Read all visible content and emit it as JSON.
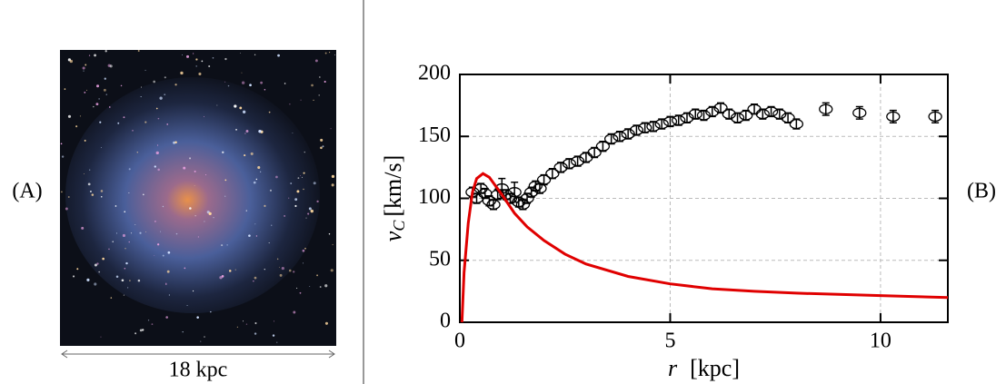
{
  "panels": {
    "left_label": "(A)",
    "right_label": "(B)",
    "scale_label": "18 kpc"
  },
  "chart_data": {
    "type": "scatter",
    "x_label": {
      "symbol": "r",
      "unit": "[kpc]"
    },
    "y_label": {
      "symbol": "v",
      "subscript": "C",
      "unit": "[km/s]"
    },
    "xlim": [
      0,
      11.6
    ],
    "xticks": [
      0,
      5,
      10
    ],
    "ylim": [
      0,
      200
    ],
    "yticks": [
      0,
      50,
      100,
      150,
      200
    ],
    "grid": true,
    "series": [
      {
        "mode": "markers",
        "color": "#000000",
        "x": [
          0.3,
          0.4,
          0.5,
          0.6,
          0.7,
          0.8,
          0.9,
          1.0,
          1.1,
          1.2,
          1.3,
          1.4,
          1.5,
          1.6,
          1.7,
          1.8,
          1.9,
          2.0,
          2.2,
          2.4,
          2.6,
          2.8,
          3.0,
          3.2,
          3.4,
          3.6,
          3.8,
          4.0,
          4.2,
          4.4,
          4.6,
          4.8,
          5.0,
          5.2,
          5.4,
          5.6,
          5.8,
          6.0,
          6.2,
          6.4,
          6.6,
          6.8,
          7.0,
          7.2,
          7.4,
          7.6,
          7.8,
          8.0,
          8.7,
          9.5,
          10.3,
          11.3
        ],
        "values": [
          105,
          100,
          108,
          104,
          98,
          95,
          103,
          108,
          103,
          100,
          105,
          97,
          95,
          100,
          105,
          110,
          108,
          115,
          120,
          125,
          128,
          130,
          133,
          137,
          142,
          148,
          150,
          152,
          155,
          157,
          158,
          160,
          162,
          163,
          165,
          168,
          167,
          170,
          173,
          168,
          165,
          167,
          172,
          168,
          170,
          168,
          165,
          160,
          172,
          169,
          166,
          166
        ],
        "errors": [
          4,
          4,
          4,
          4,
          4,
          4,
          4,
          8,
          4,
          4,
          8,
          4,
          4,
          4,
          4,
          4,
          4,
          4,
          4,
          4,
          4,
          4,
          4,
          4,
          4,
          4,
          4,
          4,
          4,
          4,
          4,
          4,
          4,
          4,
          4,
          4,
          4,
          4,
          4,
          4,
          4,
          4,
          4,
          4,
          4,
          4,
          4,
          4,
          5,
          5,
          5,
          5
        ]
      },
      {
        "mode": "line",
        "color": "#e00000",
        "x": [
          0.05,
          0.1,
          0.2,
          0.3,
          0.4,
          0.55,
          0.7,
          1.0,
          1.3,
          1.6,
          2.0,
          2.5,
          3,
          4,
          5,
          6,
          7,
          8,
          9,
          10,
          11.6
        ],
        "values": [
          0,
          40,
          80,
          105,
          116,
          120,
          117,
          103,
          88,
          77,
          66,
          55,
          47,
          37,
          31,
          27,
          25,
          23.5,
          22.5,
          21.5,
          20
        ]
      }
    ]
  }
}
